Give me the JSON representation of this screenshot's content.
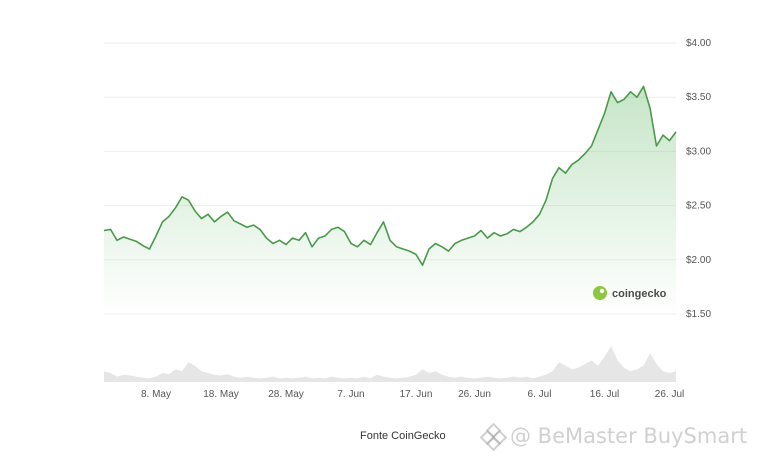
{
  "chart_data": {
    "type": "area",
    "title": "",
    "xlabel": "",
    "ylabel": "",
    "ylim": [
      1.5,
      4.0
    ],
    "yticks": [
      "$4.00",
      "$3.50",
      "$3.00",
      "$2.50",
      "$2.00",
      "$1.50"
    ],
    "ytick_values": [
      4.0,
      3.5,
      3.0,
      2.5,
      2.0,
      1.5
    ],
    "xticks": [
      "8. May",
      "18. May",
      "28. May",
      "7. Jun",
      "17. Jun",
      "26. Jun",
      "6. Jul",
      "16. Jul",
      "26. Jul"
    ],
    "xtick_days": [
      8,
      18,
      28,
      38,
      48,
      57,
      67,
      77,
      87
    ],
    "x_day_range": [
      0,
      88
    ],
    "grid": true,
    "color": "#4caf50",
    "series": [
      {
        "x": [
          0,
          1,
          2,
          3,
          4,
          5,
          6,
          7,
          8,
          9,
          10,
          11,
          12,
          13,
          14,
          15,
          16,
          17,
          18,
          19,
          20,
          21,
          22,
          23,
          24,
          25,
          26,
          27,
          28,
          29,
          30,
          31,
          32,
          33,
          34,
          35,
          36,
          37,
          38,
          39,
          40,
          41,
          42,
          43,
          44,
          45,
          46,
          47,
          48,
          49,
          50,
          51,
          52,
          53,
          54,
          55,
          56,
          57,
          58,
          59,
          60,
          61,
          62,
          63,
          64,
          65,
          66,
          67,
          68,
          69,
          70,
          71,
          72,
          73,
          74,
          75,
          76,
          77,
          78,
          79,
          80,
          81,
          82,
          83,
          84,
          85,
          86,
          87,
          88
        ],
        "values": [
          2.27,
          2.28,
          2.18,
          2.21,
          2.19,
          2.17,
          2.13,
          2.1,
          2.22,
          2.35,
          2.4,
          2.48,
          2.58,
          2.55,
          2.45,
          2.38,
          2.42,
          2.35,
          2.4,
          2.44,
          2.36,
          2.33,
          2.3,
          2.32,
          2.28,
          2.2,
          2.15,
          2.18,
          2.14,
          2.2,
          2.18,
          2.25,
          2.12,
          2.2,
          2.22,
          2.28,
          2.3,
          2.26,
          2.15,
          2.12,
          2.18,
          2.14,
          2.25,
          2.35,
          2.18,
          2.12,
          2.1,
          2.08,
          2.05,
          1.95,
          2.1,
          2.15,
          2.12,
          2.08,
          2.15,
          2.18,
          2.2,
          2.22,
          2.27,
          2.2,
          2.25,
          2.22,
          2.24,
          2.28,
          2.26,
          2.3,
          2.35,
          2.42,
          2.55,
          2.75,
          2.85,
          2.8,
          2.88,
          2.92,
          2.98,
          3.05,
          3.2,
          3.35,
          3.55,
          3.45,
          3.48,
          3.55,
          3.5,
          3.6,
          3.4,
          3.05,
          3.15,
          3.1,
          3.18
        ]
      }
    ],
    "volume": [
      0.3,
      0.25,
      0.15,
      0.2,
      0.18,
      0.15,
      0.12,
      0.1,
      0.15,
      0.25,
      0.22,
      0.35,
      0.3,
      0.55,
      0.45,
      0.3,
      0.25,
      0.2,
      0.18,
      0.22,
      0.15,
      0.12,
      0.15,
      0.12,
      0.1,
      0.12,
      0.15,
      0.1,
      0.12,
      0.1,
      0.12,
      0.15,
      0.1,
      0.12,
      0.1,
      0.15,
      0.12,
      0.1,
      0.12,
      0.1,
      0.15,
      0.1,
      0.2,
      0.15,
      0.12,
      0.1,
      0.12,
      0.15,
      0.2,
      0.35,
      0.25,
      0.3,
      0.2,
      0.15,
      0.12,
      0.15,
      0.12,
      0.1,
      0.12,
      0.15,
      0.12,
      0.1,
      0.12,
      0.15,
      0.12,
      0.15,
      0.1,
      0.15,
      0.2,
      0.3,
      0.55,
      0.45,
      0.35,
      0.4,
      0.5,
      0.6,
      0.45,
      0.7,
      1.0,
      0.6,
      0.4,
      0.3,
      0.35,
      0.45,
      0.8,
      0.5,
      0.3,
      0.25,
      0.3
    ]
  },
  "branding": {
    "logo_text": "coingecko"
  },
  "caption": "Fonte CoinGecko",
  "watermark": "@ BeMaster BuySmart"
}
